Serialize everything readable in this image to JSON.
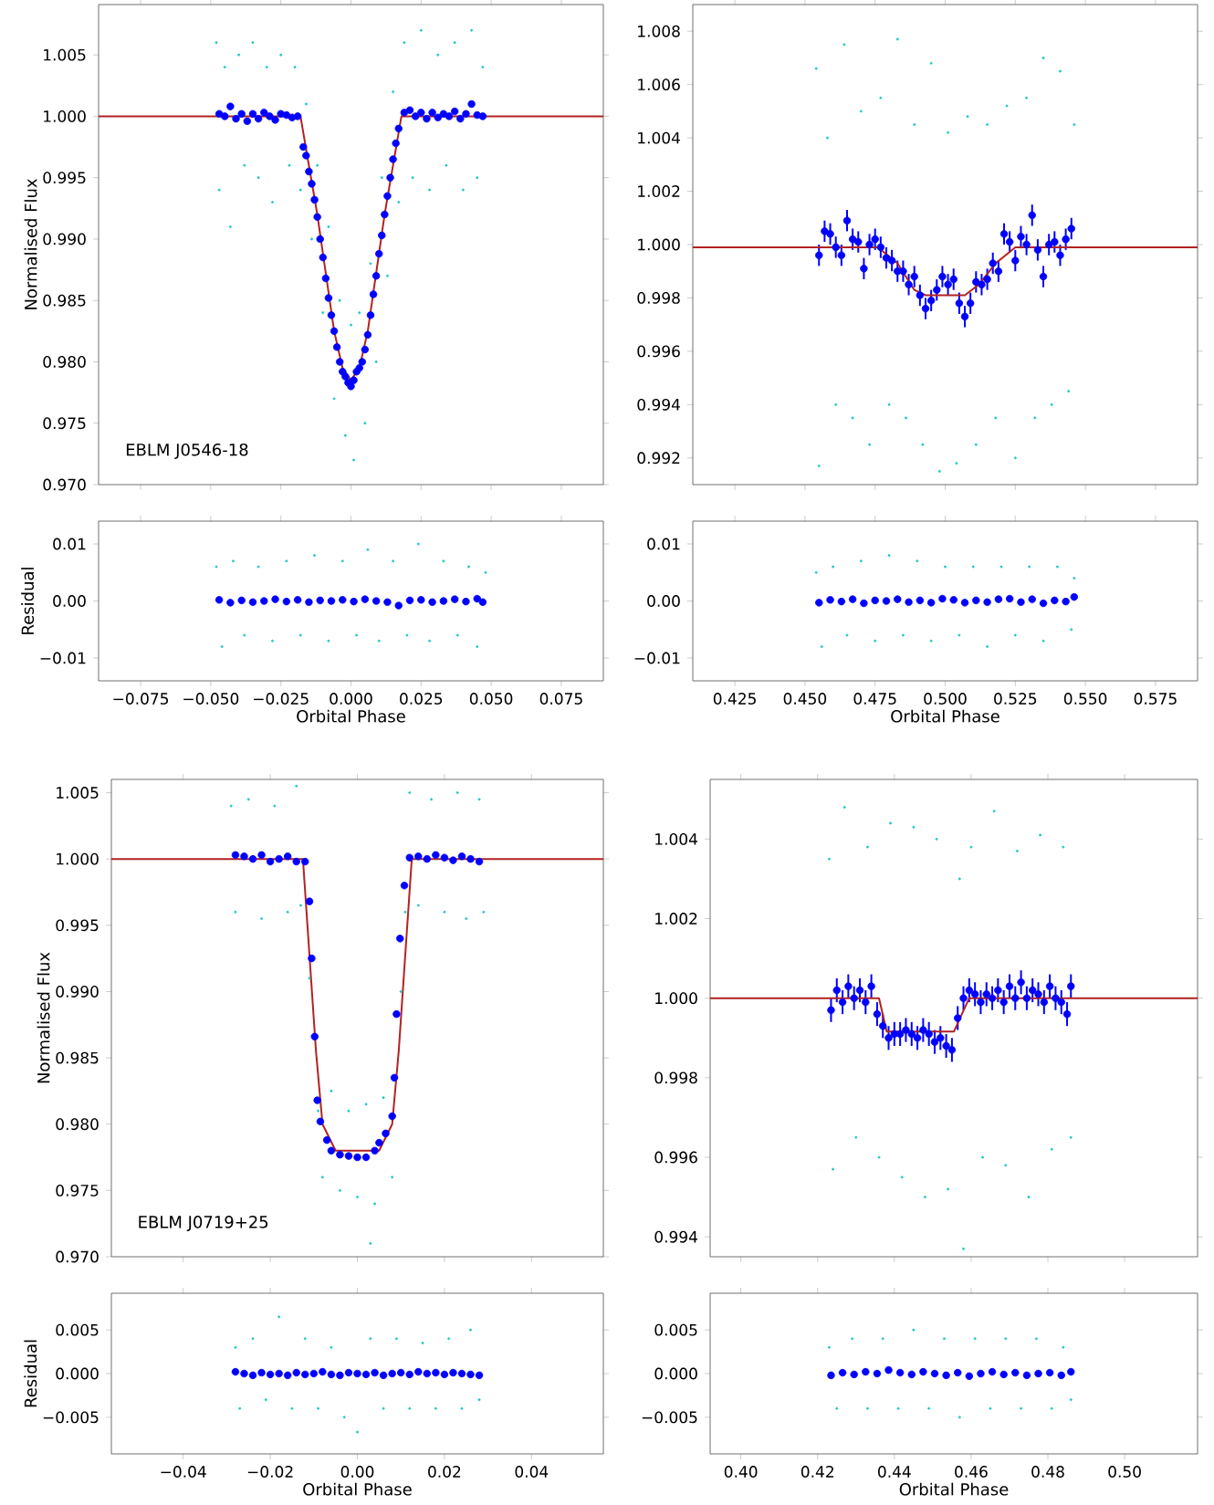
{
  "chart_data": [
    {
      "type": "scatter",
      "ylabel": "Normalised Flux",
      "annotations": [
        "EBLM J0546-18"
      ],
      "tick_labels": "y",
      "xlim": [
        -0.09,
        0.09
      ],
      "xticks": [
        -0.075,
        -0.05,
        -0.025,
        0,
        0.025,
        0.05,
        0.075
      ],
      "ylim": [
        0.97,
        1.0091
      ],
      "yticks": [
        {
          "value": 0.97,
          "label": "0.970"
        },
        0.975,
        {
          "value": 0.98,
          "label": "0.980"
        },
        0.985,
        {
          "value": 0.99,
          "label": "0.990"
        },
        0.995,
        {
          "value": 1.0,
          "label": "1.000"
        },
        1.005
      ],
      "series": [
        {
          "color": "#22c8c8",
          "x": [
            -0.048,
            -0.047,
            -0.045,
            -0.043,
            -0.04,
            -0.038,
            -0.035,
            -0.033,
            -0.03,
            -0.028,
            -0.025,
            -0.022,
            -0.02,
            -0.018,
            -0.016,
            -0.014,
            -0.012,
            -0.01,
            -0.008,
            -0.006,
            -0.004,
            -0.002,
            0.0,
            0.001,
            0.003,
            0.005,
            0.007,
            0.009,
            0.011,
            0.013,
            0.015,
            0.017,
            0.019,
            0.022,
            0.025,
            0.028,
            0.031,
            0.034,
            0.037,
            0.04,
            0.043,
            0.045,
            0.047
          ],
          "values": [
            1.006,
            0.994,
            1.004,
            0.991,
            1.005,
            0.996,
            1.006,
            0.995,
            1.004,
            0.993,
            1.005,
            0.996,
            1.004,
            0.994,
            1.001,
            0.99,
            0.996,
            0.984,
            0.991,
            0.977,
            0.985,
            0.974,
            0.983,
            0.972,
            0.984,
            0.975,
            0.988,
            0.98,
            0.995,
            0.987,
            1.002,
            0.993,
            1.006,
            0.995,
            1.007,
            0.994,
            1.005,
            0.996,
            1.006,
            0.994,
            1.007,
            0.995,
            1.004
          ]
        },
        {
          "color": "#0000ff",
          "x": [
            -0.047,
            -0.045,
            -0.043,
            -0.041,
            -0.039,
            -0.037,
            -0.035,
            -0.033,
            -0.031,
            -0.029,
            -0.027,
            -0.025,
            -0.023,
            -0.021,
            -0.019,
            -0.017,
            -0.016,
            -0.015,
            -0.014,
            -0.013,
            -0.012,
            -0.011,
            -0.01,
            -0.009,
            -0.008,
            -0.007,
            -0.006,
            -0.005,
            -0.004,
            -0.003,
            -0.002,
            -0.001,
            0.0,
            0.001,
            0.002,
            0.003,
            0.004,
            0.005,
            0.006,
            0.007,
            0.008,
            0.009,
            0.01,
            0.011,
            0.012,
            0.013,
            0.014,
            0.015,
            0.016,
            0.017,
            0.019,
            0.021,
            0.023,
            0.025,
            0.027,
            0.029,
            0.031,
            0.033,
            0.035,
            0.037,
            0.039,
            0.041,
            0.043,
            0.045,
            0.047
          ],
          "values": [
            1.0002,
            1.0,
            1.0008,
            0.9998,
            1.0002,
            0.9996,
            1.0002,
            0.9998,
            1.0003,
            1.0,
            0.9997,
            1.0002,
            1.0001,
            0.9999,
            1.0,
            0.9975,
            0.9968,
            0.9955,
            0.9945,
            0.9932,
            0.9918,
            0.99,
            0.9885,
            0.9868,
            0.9852,
            0.9838,
            0.9825,
            0.9812,
            0.98,
            0.9792,
            0.9788,
            0.9783,
            0.978,
            0.9785,
            0.9792,
            0.9795,
            0.98,
            0.981,
            0.9822,
            0.9838,
            0.9855,
            0.987,
            0.9888,
            0.9903,
            0.992,
            0.9935,
            0.995,
            0.9965,
            0.9978,
            0.999,
            1.0003,
            1.0005,
            1.0,
            1.0003,
            0.9998,
            1.0003,
            0.9999,
            1.0002,
            1.0,
            1.0004,
            0.9998,
            1.0002,
            1.001,
            1.0001,
            1.0
          ]
        },
        {
          "type": "line",
          "color": "#b22222",
          "x": [
            -0.09,
            -0.018,
            -0.012,
            -0.006,
            -0.003,
            0,
            0.003,
            0.006,
            0.012,
            0.018,
            0.09
          ],
          "values": [
            1.0,
            1.0,
            0.992,
            0.9825,
            0.9795,
            0.9785,
            0.9795,
            0.9825,
            0.992,
            1.0,
            1.0
          ]
        }
      ]
    },
    {
      "type": "scatter",
      "tick_labels": "y",
      "xlim": [
        0.41,
        0.59
      ],
      "xticks": [
        0.425,
        0.45,
        0.475,
        0.5,
        0.525,
        0.55,
        0.575
      ],
      "ylim": [
        0.991,
        1.009
      ],
      "yticks": [
        0.992,
        0.994,
        0.996,
        0.998,
        {
          "value": 1.0,
          "label": "1.000"
        },
        1.002,
        1.004,
        1.006,
        1.008
      ],
      "series": [
        {
          "color": "#22c8c8",
          "x": [
            0.454,
            0.455,
            0.458,
            0.461,
            0.464,
            0.467,
            0.47,
            0.473,
            0.477,
            0.48,
            0.483,
            0.486,
            0.489,
            0.492,
            0.495,
            0.498,
            0.501,
            0.504,
            0.508,
            0.511,
            0.515,
            0.518,
            0.522,
            0.525,
            0.529,
            0.532,
            0.535,
            0.538,
            0.541,
            0.544,
            0.546
          ],
          "values": [
            1.0066,
            0.9917,
            1.004,
            0.994,
            1.0075,
            0.9935,
            1.005,
            0.9925,
            1.0055,
            0.994,
            1.0077,
            0.9935,
            1.0045,
            0.9925,
            1.0068,
            0.9915,
            1.0042,
            0.9918,
            1.0048,
            0.9925,
            1.0045,
            0.9935,
            1.0052,
            0.992,
            1.0055,
            0.9935,
            1.007,
            0.994,
            1.0065,
            0.9945,
            1.0045
          ]
        },
        {
          "color": "#0000ff",
          "x": [
            0.455,
            0.457,
            0.459,
            0.461,
            0.463,
            0.465,
            0.467,
            0.469,
            0.471,
            0.473,
            0.475,
            0.477,
            0.479,
            0.481,
            0.483,
            0.485,
            0.487,
            0.489,
            0.491,
            0.493,
            0.495,
            0.497,
            0.499,
            0.501,
            0.503,
            0.505,
            0.507,
            0.509,
            0.511,
            0.513,
            0.515,
            0.517,
            0.519,
            0.521,
            0.523,
            0.525,
            0.527,
            0.529,
            0.531,
            0.533,
            0.535,
            0.537,
            0.539,
            0.541,
            0.543,
            0.545
          ],
          "values": [
            0.9996,
            1.0005,
            1.0004,
            0.9999,
            0.9996,
            1.0009,
            1.0002,
            1.0001,
            0.9991,
            1.0,
            1.0002,
            0.9999,
            0.9995,
            0.9994,
            0.999,
            0.999,
            0.9985,
            0.9988,
            0.9981,
            0.9976,
            0.9979,
            0.9983,
            0.9988,
            0.9985,
            0.9987,
            0.9978,
            0.9973,
            0.9978,
            0.9986,
            0.9985,
            0.9987,
            0.9993,
            0.999,
            1.0004,
            1.0001,
            0.9994,
            1.0003,
            1.0,
            1.0011,
            0.9998,
            0.9988,
            1.0,
            1.0001,
            0.9996,
            1.0002,
            1.0006
          ],
          "errors": [
            0.0004,
            0.0004,
            0.0004,
            0.0004,
            0.0004,
            0.0004,
            0.0004,
            0.0004,
            0.0004,
            0.0004,
            0.0004,
            0.0004,
            0.0004,
            0.0004,
            0.0004,
            0.0004,
            0.0004,
            0.0004,
            0.0004,
            0.0004,
            0.0004,
            0.0004,
            0.0004,
            0.0004,
            0.0004,
            0.0004,
            0.0004,
            0.0004,
            0.0004,
            0.0004,
            0.0004,
            0.0004,
            0.0004,
            0.0004,
            0.0004,
            0.0004,
            0.0004,
            0.0004,
            0.0004,
            0.0004,
            0.0004,
            0.0004,
            0.0004,
            0.0004,
            0.0004,
            0.0004
          ]
        },
        {
          "type": "line",
          "color": "#b22222",
          "x": [
            0.41,
            0.476,
            0.483,
            0.489,
            0.493,
            0.507,
            0.512,
            0.518,
            0.525,
            0.59
          ],
          "values": [
            0.9999,
            0.9999,
            0.9993,
            0.9983,
            0.9981,
            0.9981,
            0.9985,
            0.9993,
            0.9999,
            0.9999
          ]
        }
      ]
    },
    {
      "type": "scatter",
      "ylabel": "Residual",
      "xlabel": "Orbital Phase",
      "xlim": [
        -0.09,
        0.09
      ],
      "xticks": [
        {
          "value": -0.075,
          "label": "−0.075"
        },
        {
          "value": -0.05,
          "label": "−0.050"
        },
        {
          "value": -0.025,
          "label": "−0.025"
        },
        {
          "value": 0,
          "label": "0.000"
        },
        0.025,
        {
          "value": 0.05,
          "label": "0.050"
        },
        0.075
      ],
      "ylim": [
        -0.014,
        0.014
      ],
      "yticks": [
        {
          "value": -0.01,
          "label": "−0.01"
        },
        {
          "value": 0,
          "label": "0.00"
        },
        0.01
      ],
      "series": [
        {
          "color": "#22c8c8",
          "x": [
            -0.048,
            -0.046,
            -0.042,
            -0.038,
            -0.033,
            -0.028,
            -0.023,
            -0.018,
            -0.013,
            -0.008,
            -0.003,
            0.002,
            0.006,
            0.01,
            0.015,
            0.02,
            0.024,
            0.028,
            0.033,
            0.038,
            0.042,
            0.045,
            0.048
          ],
          "values": [
            0.006,
            -0.008,
            0.007,
            -0.006,
            0.006,
            -0.007,
            0.007,
            -0.006,
            0.008,
            -0.007,
            0.007,
            -0.006,
            0.009,
            -0.007,
            0.007,
            -0.006,
            0.01,
            -0.007,
            0.007,
            -0.006,
            0.006,
            -0.008,
            0.005
          ]
        },
        {
          "color": "#0000ff",
          "x": [
            -0.047,
            -0.043,
            -0.039,
            -0.035,
            -0.031,
            -0.027,
            -0.023,
            -0.019,
            -0.015,
            -0.011,
            -0.007,
            -0.003,
            0.001,
            0.005,
            0.009,
            0.013,
            0.017,
            0.021,
            0.025,
            0.029,
            0.033,
            0.037,
            0.041,
            0.045,
            0.047
          ],
          "values": [
            0.0002,
            -0.0003,
            0.0001,
            -0.0002,
            0.0,
            0.0003,
            -0.0001,
            0.0002,
            -0.0002,
            0.0001,
            0.0,
            0.0002,
            -0.0001,
            0.0003,
            0.0,
            -0.0002,
            -0.0008,
            0.0001,
            0.0002,
            -0.0002,
            0.0,
            0.0003,
            -0.0001,
            0.0004,
            -0.0002
          ]
        }
      ]
    },
    {
      "type": "scatter",
      "xlabel": "Orbital Phase",
      "xlim": [
        0.41,
        0.59
      ],
      "xticks": [
        0.425,
        {
          "value": 0.45,
          "label": "0.450"
        },
        0.475,
        {
          "value": 0.5,
          "label": "0.500"
        },
        0.525,
        {
          "value": 0.55,
          "label": "0.550"
        },
        0.575
      ],
      "ylim": [
        -0.014,
        0.014
      ],
      "yticks": [
        {
          "value": -0.01,
          "label": "−0.01"
        },
        {
          "value": 0,
          "label": "0.00"
        },
        0.01
      ],
      "series": [
        {
          "color": "#22c8c8",
          "x": [
            0.454,
            0.456,
            0.46,
            0.465,
            0.47,
            0.475,
            0.48,
            0.485,
            0.49,
            0.495,
            0.5,
            0.505,
            0.51,
            0.515,
            0.52,
            0.525,
            0.53,
            0.535,
            0.54,
            0.545,
            0.546
          ],
          "values": [
            0.005,
            -0.008,
            0.006,
            -0.006,
            0.007,
            -0.007,
            0.008,
            -0.006,
            0.007,
            -0.007,
            0.006,
            -0.006,
            0.006,
            -0.008,
            0.006,
            -0.006,
            0.006,
            -0.007,
            0.006,
            -0.005,
            0.004
          ]
        },
        {
          "color": "#0000ff",
          "x": [
            0.455,
            0.459,
            0.463,
            0.467,
            0.471,
            0.475,
            0.479,
            0.483,
            0.487,
            0.491,
            0.495,
            0.499,
            0.503,
            0.507,
            0.511,
            0.515,
            0.519,
            0.523,
            0.527,
            0.531,
            0.535,
            0.539,
            0.543,
            0.546
          ],
          "values": [
            -0.0003,
            0.0002,
            -0.0001,
            0.0003,
            -0.0004,
            0.0001,
            0.0,
            0.0003,
            -0.0002,
            0.0001,
            -0.0003,
            0.0004,
            0.0002,
            -0.0003,
            0.0001,
            -0.0002,
            0.0003,
            0.0004,
            -0.0002,
            0.0003,
            -0.0004,
            0.0001,
            -0.0001,
            0.0007
          ]
        }
      ]
    },
    {
      "type": "scatter",
      "ylabel": "Normalised Flux",
      "annotations": [
        "EBLM J0719+25"
      ],
      "tick_labels": "y",
      "xlim": [
        -0.0565,
        0.0565
      ],
      "xticks": [
        -0.04,
        -0.02,
        0,
        0.02,
        0.04
      ],
      "ylim": [
        0.97,
        1.006
      ],
      "yticks": [
        {
          "value": 0.97,
          "label": "0.970"
        },
        0.975,
        {
          "value": 0.98,
          "label": "0.980"
        },
        0.985,
        {
          "value": 0.99,
          "label": "0.990"
        },
        0.995,
        {
          "value": 1.0,
          "label": "1.000"
        },
        1.005
      ],
      "series": [
        {
          "color": "#22c8c8",
          "x": [
            -0.029,
            -0.028,
            -0.025,
            -0.022,
            -0.019,
            -0.016,
            -0.014,
            -0.013,
            -0.011,
            -0.009,
            -0.008,
            -0.006,
            -0.004,
            -0.002,
            0.0,
            0.002,
            0.003,
            0.004,
            0.006,
            0.008,
            0.01,
            0.011,
            0.012,
            0.014,
            0.017,
            0.02,
            0.023,
            0.025,
            0.028,
            0.029
          ],
          "values": [
            1.004,
            0.996,
            1.0045,
            0.9955,
            1.004,
            0.996,
            1.0055,
            0.9965,
            0.991,
            0.981,
            0.976,
            0.9825,
            0.975,
            0.981,
            0.9745,
            0.9815,
            0.971,
            0.974,
            0.982,
            0.976,
            0.99,
            0.996,
            1.005,
            0.9965,
            1.0045,
            0.996,
            1.005,
            0.9955,
            1.0045,
            0.996
          ]
        },
        {
          "color": "#0000ff",
          "x": [
            -0.028,
            -0.026,
            -0.024,
            -0.022,
            -0.02,
            -0.018,
            -0.016,
            -0.014,
            -0.012,
            -0.011,
            -0.0105,
            -0.0098,
            -0.0092,
            -0.0085,
            -0.007,
            -0.006,
            -0.004,
            -0.002,
            0.0,
            0.002,
            0.004,
            0.005,
            0.0065,
            0.008,
            0.0085,
            0.009,
            0.0098,
            0.0108,
            0.012,
            0.014,
            0.016,
            0.018,
            0.02,
            0.022,
            0.024,
            0.026,
            0.028
          ],
          "values": [
            1.0003,
            1.0002,
            1.0,
            1.0003,
            0.9998,
            1.0,
            1.0002,
            0.9998,
            0.9998,
            0.9968,
            0.9925,
            0.9866,
            0.9818,
            0.9802,
            0.9788,
            0.978,
            0.9777,
            0.9776,
            0.9775,
            0.9775,
            0.978,
            0.9786,
            0.9793,
            0.9806,
            0.9835,
            0.9883,
            0.994,
            0.998,
            1.0001,
            1.0002,
            1.0,
            1.0003,
            1.0001,
            0.9999,
            1.0002,
            1.0,
            0.9998
          ]
        },
        {
          "type": "line",
          "color": "#b22222",
          "x": [
            -0.0565,
            -0.0125,
            -0.0095,
            -0.008,
            -0.005,
            0.005,
            0.008,
            0.0095,
            0.0125,
            0.0565
          ],
          "values": [
            1.0,
            1.0,
            0.9855,
            0.98,
            0.978,
            0.978,
            0.98,
            0.9855,
            1.0,
            1.0
          ]
        }
      ]
    },
    {
      "type": "scatter",
      "tick_labels": "y",
      "xlim": [
        0.392,
        0.519
      ],
      "xticks": [
        0.4,
        0.42,
        0.44,
        0.46,
        0.48,
        0.5
      ],
      "ylim": [
        0.9935,
        1.0055
      ],
      "yticks": [
        0.994,
        0.996,
        0.998,
        {
          "value": 1.0,
          "label": "1.000"
        },
        1.002,
        1.004
      ],
      "series": [
        {
          "color": "#22c8c8",
          "x": [
            0.423,
            0.424,
            0.427,
            0.43,
            0.433,
            0.436,
            0.439,
            0.442,
            0.445,
            0.448,
            0.451,
            0.454,
            0.457,
            0.458,
            0.46,
            0.463,
            0.466,
            0.469,
            0.472,
            0.475,
            0.478,
            0.481,
            0.484,
            0.486
          ],
          "values": [
            1.0035,
            0.9957,
            1.0048,
            0.9965,
            1.0038,
            0.996,
            1.0044,
            0.9955,
            1.0043,
            0.995,
            1.004,
            0.9952,
            1.003,
            0.9937,
            1.0038,
            0.996,
            1.0047,
            0.9958,
            1.0037,
            0.995,
            1.0041,
            0.9962,
            1.0038,
            0.9965
          ]
        },
        {
          "color": "#0000ff",
          "x": [
            0.4235,
            0.425,
            0.4265,
            0.428,
            0.4295,
            0.431,
            0.4325,
            0.434,
            0.4355,
            0.437,
            0.4385,
            0.44,
            0.4415,
            0.443,
            0.4445,
            0.446,
            0.4475,
            0.449,
            0.4505,
            0.452,
            0.4535,
            0.455,
            0.4565,
            0.458,
            0.4595,
            0.461,
            0.4625,
            0.464,
            0.4655,
            0.467,
            0.4685,
            0.47,
            0.4715,
            0.473,
            0.4745,
            0.476,
            0.4775,
            0.479,
            0.4805,
            0.482,
            0.4835,
            0.485,
            0.486
          ],
          "values": [
            0.9997,
            1.0002,
            0.9999,
            1.0003,
            1.0,
            1.0002,
            0.9999,
            1.0003,
            0.9996,
            0.9993,
            0.999,
            0.9991,
            0.9991,
            0.9992,
            0.9991,
            0.999,
            0.9992,
            0.9991,
            0.9989,
            0.999,
            0.9988,
            0.9987,
            0.9995,
            1.0,
            1.0002,
            1.0001,
            0.9999,
            1.0001,
            1.0,
            1.0002,
            0.9999,
            1.0003,
            1.0,
            1.0004,
            1.0,
            1.0002,
            1.0001,
            0.9999,
            1.0003,
            1.0,
            0.9999,
            0.9996,
            1.0003
          ],
          "errors": [
            0.0003,
            0.0003,
            0.0003,
            0.0003,
            0.0003,
            0.0003,
            0.0003,
            0.0003,
            0.0003,
            0.0003,
            0.0003,
            0.0003,
            0.0003,
            0.0003,
            0.0003,
            0.0003,
            0.0003,
            0.0003,
            0.0003,
            0.0003,
            0.0003,
            0.0003,
            0.0003,
            0.0003,
            0.0003,
            0.0003,
            0.0003,
            0.0003,
            0.0003,
            0.0003,
            0.0003,
            0.0003,
            0.0003,
            0.0003,
            0.0003,
            0.0003,
            0.0003,
            0.0003,
            0.0003,
            0.0003,
            0.0003,
            0.0003,
            0.0003
          ]
        },
        {
          "type": "line",
          "color": "#b22222",
          "x": [
            0.392,
            0.436,
            0.438,
            0.4555,
            0.4595,
            0.519
          ],
          "values": [
            1.0,
            1.0,
            0.99916,
            0.99916,
            1.0,
            1.0
          ]
        }
      ]
    },
    {
      "type": "scatter",
      "ylabel": "Residual",
      "xlabel": "Orbital Phase",
      "xlim": [
        -0.0565,
        0.0565
      ],
      "xticks": [
        {
          "value": -0.04,
          "label": "−0.04"
        },
        {
          "value": -0.02,
          "label": "−0.02"
        },
        {
          "value": 0,
          "label": "0.00"
        },
        0.02,
        0.04
      ],
      "ylim": [
        -0.0092,
        0.0092
      ],
      "yticks": [
        {
          "value": -0.005,
          "label": "−0.005"
        },
        {
          "value": 0,
          "label": "0.000"
        },
        0.005
      ],
      "series": [
        {
          "color": "#22c8c8",
          "x": [
            -0.028,
            -0.027,
            -0.024,
            -0.021,
            -0.018,
            -0.015,
            -0.012,
            -0.009,
            -0.006,
            -0.003,
            0.0,
            0.003,
            0.006,
            0.009,
            0.012,
            0.015,
            0.018,
            0.021,
            0.024,
            0.026,
            0.028
          ],
          "values": [
            0.003,
            -0.004,
            0.004,
            -0.003,
            0.0065,
            -0.004,
            0.004,
            -0.004,
            0.003,
            -0.005,
            -0.0067,
            0.004,
            -0.004,
            0.004,
            -0.004,
            0.0035,
            -0.004,
            0.004,
            -0.004,
            0.005,
            -0.003
          ]
        },
        {
          "color": "#0000ff",
          "x": [
            -0.028,
            -0.026,
            -0.024,
            -0.022,
            -0.02,
            -0.018,
            -0.016,
            -0.014,
            -0.012,
            -0.01,
            -0.008,
            -0.006,
            -0.004,
            -0.002,
            0.0,
            0.002,
            0.004,
            0.006,
            0.008,
            0.01,
            0.012,
            0.014,
            0.016,
            0.018,
            0.02,
            0.022,
            0.024,
            0.026,
            0.028
          ],
          "values": [
            0.0002,
            0.0,
            -0.0002,
            0.0001,
            -0.0001,
            0.0,
            -0.0002,
            0.0001,
            -0.0001,
            0.0,
            0.0002,
            -0.0001,
            -0.0002,
            0.0001,
            0.0,
            -0.0001,
            0.0001,
            -0.0002,
            0.0,
            0.0001,
            -0.0001,
            0.0002,
            0.0,
            0.0001,
            -0.0001,
            0.0001,
            0.0,
            -0.0001,
            -0.0002
          ]
        }
      ]
    },
    {
      "type": "scatter",
      "xlabel": "Orbital Phase",
      "xlim": [
        0.392,
        0.519
      ],
      "xticks": [
        {
          "value": 0.4,
          "label": "0.40"
        },
        0.42,
        0.44,
        0.46,
        0.48,
        {
          "value": 0.5,
          "label": "0.50"
        }
      ],
      "ylim": [
        -0.0092,
        0.0092
      ],
      "yticks": [
        {
          "value": -0.005,
          "label": "−0.005"
        },
        {
          "value": 0,
          "label": "0.000"
        },
        0.005
      ],
      "series": [
        {
          "color": "#22c8c8",
          "x": [
            0.423,
            0.425,
            0.429,
            0.433,
            0.437,
            0.441,
            0.445,
            0.449,
            0.453,
            0.457,
            0.461,
            0.465,
            0.469,
            0.473,
            0.477,
            0.481,
            0.484,
            0.486
          ],
          "values": [
            0.003,
            -0.004,
            0.004,
            -0.004,
            0.004,
            -0.004,
            0.005,
            -0.004,
            0.004,
            -0.005,
            0.004,
            -0.004,
            0.004,
            -0.004,
            0.004,
            -0.004,
            0.003,
            -0.003
          ]
        },
        {
          "color": "#0000ff",
          "x": [
            0.4235,
            0.4265,
            0.4295,
            0.4325,
            0.4355,
            0.4385,
            0.4415,
            0.4445,
            0.4475,
            0.4505,
            0.4535,
            0.4565,
            0.4595,
            0.4625,
            0.4655,
            0.4685,
            0.4715,
            0.4745,
            0.4775,
            0.4805,
            0.4835,
            0.486
          ],
          "values": [
            -0.0002,
            0.0001,
            -0.0001,
            0.0002,
            0.0,
            0.0004,
            0.0001,
            -0.0001,
            0.0002,
            0.0,
            -0.0002,
            0.0001,
            -0.0003,
            0.0,
            0.0002,
            -0.0001,
            0.0001,
            -0.0002,
            0.0,
            0.0001,
            -0.0002,
            0.0002
          ]
        }
      ]
    }
  ]
}
